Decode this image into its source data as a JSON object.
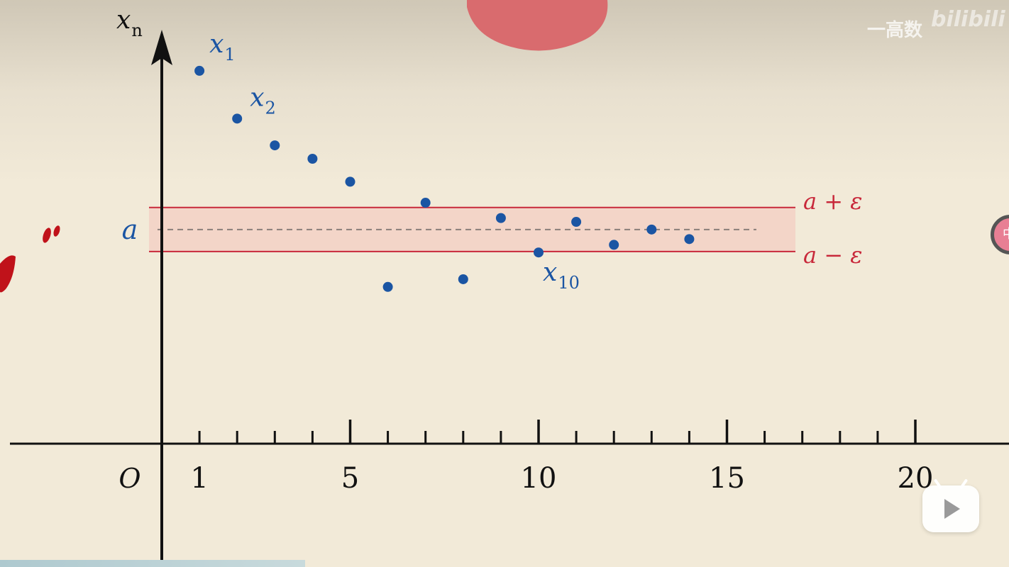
{
  "watermark": {
    "text": "一高数",
    "logo": "bilibili"
  },
  "side_button": {
    "label": "中",
    "color": "#e87f94"
  },
  "play_button": {
    "icon": "play-icon"
  },
  "colors": {
    "point": "#1b55a3",
    "band_line": "#c8283a",
    "band_fill": "#f3d5c8",
    "axis": "#111111",
    "dashed": "#8a7f7a",
    "blob": "#d96b6e",
    "stroke_red": "#c0121a"
  },
  "chart_data": {
    "type": "scatter",
    "y_axis_label": "x",
    "y_axis_label_sub": "n",
    "origin_label": "O",
    "x_ticks": [
      1,
      2,
      3,
      4,
      5,
      6,
      7,
      8,
      9,
      10,
      11,
      12,
      13,
      14,
      15,
      16,
      17,
      18,
      19,
      20
    ],
    "x_tick_labels": [
      "1",
      "5",
      "10",
      "15",
      "20"
    ],
    "xlim": [
      0,
      22.5
    ],
    "points": [
      {
        "x": 1,
        "y": 1.95
      },
      {
        "x": 2,
        "y": 1.7
      },
      {
        "x": 3,
        "y": 1.56
      },
      {
        "x": 4,
        "y": 1.49
      },
      {
        "x": 5,
        "y": 1.37
      },
      {
        "x": 6,
        "y": 0.82
      },
      {
        "x": 7,
        "y": 1.26
      },
      {
        "x": 8,
        "y": 0.86
      },
      {
        "x": 9,
        "y": 1.18
      },
      {
        "x": 10,
        "y": 1.0
      },
      {
        "x": 11,
        "y": 1.16
      },
      {
        "x": 12,
        "y": 1.04
      },
      {
        "x": 13,
        "y": 1.12
      },
      {
        "x": 14,
        "y": 1.07
      }
    ],
    "point_labels": [
      {
        "index": 0,
        "main": "x",
        "sub": "1"
      },
      {
        "index": 1,
        "main": "x",
        "sub": "2"
      },
      {
        "index": 9,
        "main": "x",
        "sub": "10"
      }
    ],
    "a": 1.12,
    "epsilon": 0.115,
    "a_label": "a",
    "upper_label": "a + ε",
    "lower_label": "a − ε"
  }
}
